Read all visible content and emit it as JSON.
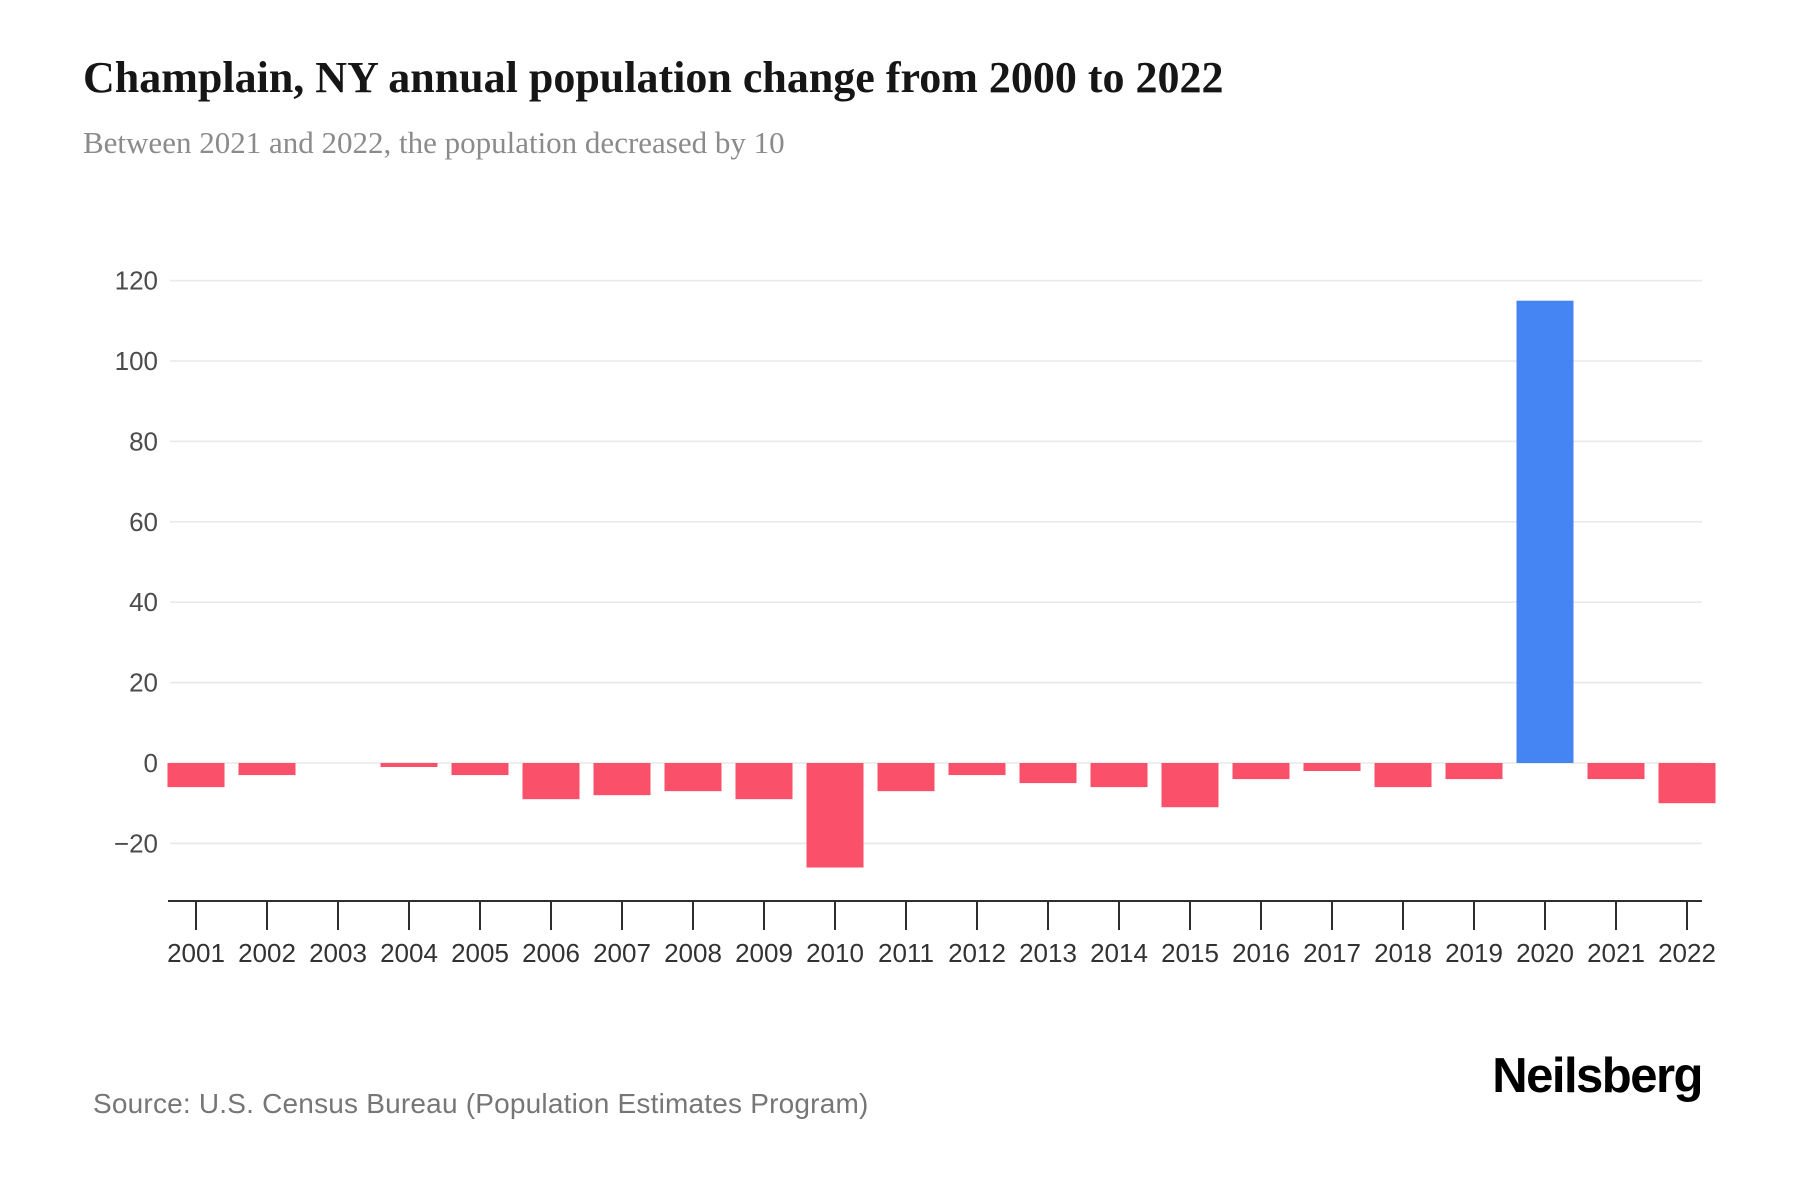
{
  "header": {
    "title": "Champlain, NY annual population change from 2000 to 2022",
    "subtitle": "Between 2021 and 2022, the population decreased by 10"
  },
  "footer": {
    "source": "Source: U.S. Census Bureau (Population Estimates Program)",
    "brand": "Neilsberg"
  },
  "chart_data": {
    "type": "bar",
    "title": "Champlain, NY annual population change from 2000 to 2022",
    "subtitle": "Between 2021 and 2022, the population decreased by 10",
    "categories": [
      "2001",
      "2002",
      "2003",
      "2004",
      "2005",
      "2006",
      "2007",
      "2008",
      "2009",
      "2010",
      "2011",
      "2012",
      "2013",
      "2014",
      "2015",
      "2016",
      "2017",
      "2018",
      "2019",
      "2020",
      "2021",
      "2022"
    ],
    "values": [
      -6,
      -3,
      0,
      -1,
      -3,
      -9,
      -8,
      -7,
      -9,
      -26,
      -7,
      -3,
      -5,
      -6,
      -11,
      -4,
      -2,
      -6,
      -4,
      115,
      -4,
      -10
    ],
    "yticks": [
      120,
      100,
      80,
      60,
      40,
      20,
      0,
      -20
    ],
    "ylim": [
      -34,
      138
    ],
    "xlabel": "",
    "ylabel": "",
    "grid": true,
    "legend": "none",
    "colors": {
      "positive": "#4484f3",
      "negative": "#fa5069"
    }
  }
}
